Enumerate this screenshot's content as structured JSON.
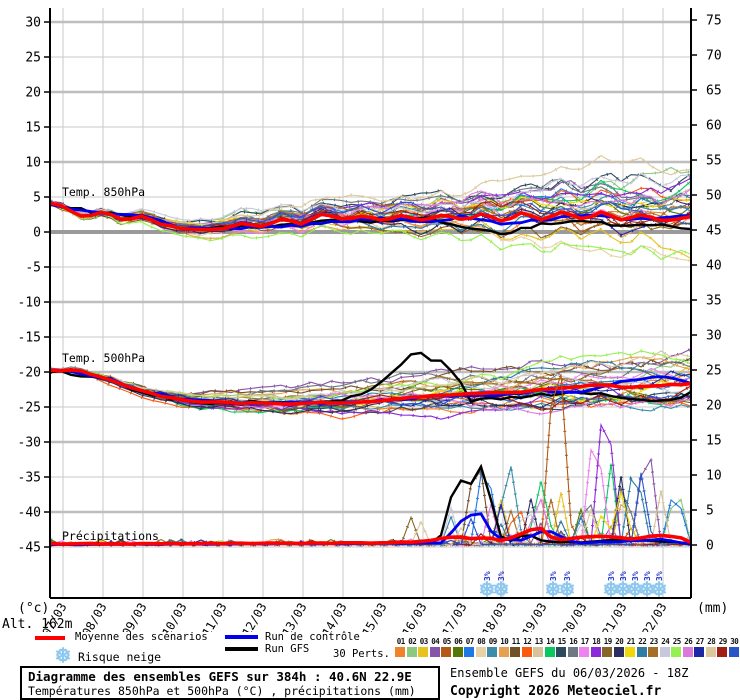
{
  "legend": {
    "mean_label": "Moyenne des scénarios",
    "control_label": "Run de contrôle",
    "gfs_label": "Run GFS",
    "perts_label": "30 Perts.",
    "snow_label": "Risque neige",
    "alt_label": "Alt. 162m",
    "left_unit": "(°c)",
    "right_unit": "(mm)"
  },
  "title_box": {
    "line1": "Diagramme des ensembles GEFS sur 384h : 40.6N 22.9E",
    "line2": "Températures 850hPa et 500hPa (°C) , précipitations (mm)"
  },
  "footer_right": {
    "line1": "Ensemble GEFS du 06/03/2026 - 18Z",
    "line2": "Copyright 2026 Meteociel.fr"
  },
  "pert_numbers": [
    "01",
    "02",
    "03",
    "04",
    "05",
    "06",
    "07",
    "08",
    "09",
    "10",
    "11",
    "12",
    "13",
    "14",
    "15",
    "16",
    "17",
    "18",
    "19",
    "20",
    "21",
    "22",
    "23",
    "24",
    "25",
    "26",
    "27",
    "28",
    "29",
    "30"
  ],
  "colors": {
    "mean": "#FF0000",
    "control": "#0000EE",
    "gfs": "#000000",
    "snowflake": "#8EC8EE",
    "snow_text": "#2233CC",
    "grid_thin": "#C8C8C8",
    "grid_thick": "#BEBEBE",
    "zero_line": "#9A9A9A",
    "axis": "#000000",
    "members": [
      "#F08228",
      "#8CC87D",
      "#E6C31E",
      "#8755A8",
      "#B45A14",
      "#557805",
      "#1E78E6",
      "#E6D2A5",
      "#3C8CAA",
      "#E6A050",
      "#735028",
      "#FA5A0F",
      "#D7C39B",
      "#0AC85F",
      "#2D4B5F",
      "#6E7882",
      "#EE82EE",
      "#8C28DC",
      "#876428",
      "#2D2D5F",
      "#F0D705",
      "#2D7DA5",
      "#A56E28",
      "#C8C8DC",
      "#96F050",
      "#DC78DC",
      "#1E28A5",
      "#DCC89B",
      "#A01E14",
      "#2855C8"
    ]
  },
  "chart_data": {
    "type": "line",
    "title": "Diagramme des ensembles GEFS sur 384h : 40.6N 22.9E",
    "subtitle": "Températures 850hPa et 500hPa (°C) , précipitations (mm)",
    "x_labels": [
      "07/03",
      "08/03",
      "09/03",
      "10/03",
      "11/03",
      "12/03",
      "13/03",
      "14/03",
      "15/03",
      "16/03",
      "17/03",
      "18/03",
      "19/03",
      "20/03",
      "21/03",
      "22/03"
    ],
    "x_range_days": [
      6.7,
      22.7
    ],
    "left_axis": {
      "unit": "(°c)",
      "tick_max": 30,
      "tick_min": -45,
      "tick_step": 5
    },
    "right_axis": {
      "unit": "(mm)",
      "tick_max": 75,
      "tick_min": 0,
      "tick_step": 5
    },
    "grid": "on",
    "sections": [
      {
        "key": "temp850",
        "label": "Temp. 850hPa"
      },
      {
        "key": "temp500",
        "label": "Temp. 500hPa"
      },
      {
        "key": "precip",
        "label": "Précipitations"
      }
    ],
    "temp850": {
      "mean": [
        [
          6.7,
          4.1
        ],
        [
          7,
          3.6
        ],
        [
          7.5,
          2.1
        ],
        [
          8,
          2.9
        ],
        [
          8.5,
          1.7
        ],
        [
          9,
          2.3
        ],
        [
          9.5,
          1.0
        ],
        [
          10,
          0.5
        ],
        [
          10.5,
          0.3
        ],
        [
          11,
          0.5
        ],
        [
          11.5,
          1.3
        ],
        [
          12,
          0.7
        ],
        [
          12.5,
          1.9
        ],
        [
          13,
          1.1
        ],
        [
          13.5,
          2.7
        ],
        [
          14,
          1.7
        ],
        [
          14.5,
          2.3
        ],
        [
          15,
          1.6
        ],
        [
          15.5,
          2.4
        ],
        [
          16,
          1.6
        ],
        [
          16.5,
          2.5
        ],
        [
          17,
          1.7
        ],
        [
          17.5,
          2.6
        ],
        [
          18,
          1.5
        ],
        [
          18.5,
          2.8
        ],
        [
          19,
          1.7
        ],
        [
          19.5,
          2.9
        ],
        [
          20,
          1.8
        ],
        [
          20.5,
          2.9
        ],
        [
          21,
          1.6
        ],
        [
          21.5,
          2.6
        ],
        [
          22,
          1.5
        ],
        [
          22.7,
          2.2
        ]
      ],
      "control": [
        [
          6.7,
          3.9
        ],
        [
          7,
          3.6
        ],
        [
          8,
          2.8
        ],
        [
          9,
          2.4
        ],
        [
          10,
          0.5
        ],
        [
          11,
          0.4
        ],
        [
          12,
          0.8
        ],
        [
          13,
          1.0
        ],
        [
          14,
          1.5
        ],
        [
          15,
          2.0
        ],
        [
          16,
          1.4
        ],
        [
          17,
          2.2
        ],
        [
          18,
          1.1
        ],
        [
          19,
          1.7
        ],
        [
          20,
          2.4
        ],
        [
          21,
          1.8
        ],
        [
          22,
          2.1
        ],
        [
          22.7,
          2.4
        ]
      ],
      "gfs": [
        [
          6.7,
          3.9
        ],
        [
          7,
          3.6
        ],
        [
          8,
          2.7
        ],
        [
          9,
          2.2
        ],
        [
          10,
          0.4
        ],
        [
          11,
          0.6
        ],
        [
          12,
          0.9
        ],
        [
          13,
          1.2
        ],
        [
          14,
          1.9
        ],
        [
          15,
          1.4
        ],
        [
          16,
          2.0
        ],
        [
          17,
          0.9
        ],
        [
          18,
          -0.3
        ],
        [
          19,
          1.2
        ],
        [
          20,
          1.8
        ],
        [
          21,
          0.8
        ],
        [
          22,
          1.1
        ],
        [
          22.7,
          0.5
        ]
      ],
      "spread_start": 0.55,
      "spread_end": 4.3,
      "min": -8.3,
      "max": 12.6,
      "seed": 11
    },
    "temp500": {
      "mean": [
        [
          6.7,
          -19.8
        ],
        [
          7,
          -19.9
        ],
        [
          7.3,
          -19.5
        ],
        [
          7.5,
          -20.0
        ],
        [
          8,
          -20.8
        ],
        [
          8.5,
          -21.8
        ],
        [
          9,
          -22.8
        ],
        [
          9.5,
          -23.5
        ],
        [
          10,
          -24.0
        ],
        [
          10.5,
          -24.3
        ],
        [
          11,
          -24.2
        ],
        [
          11.5,
          -24.5
        ],
        [
          12,
          -24.4
        ],
        [
          12.5,
          -24.6
        ],
        [
          13,
          -24.5
        ],
        [
          13.5,
          -24.4
        ],
        [
          14,
          -24.5
        ],
        [
          14.5,
          -24.3
        ],
        [
          15,
          -24.0
        ],
        [
          15.5,
          -23.8
        ],
        [
          16,
          -23.5
        ],
        [
          16.5,
          -23.3
        ],
        [
          17,
          -23.2
        ],
        [
          17.5,
          -23.0
        ],
        [
          18,
          -23.0
        ],
        [
          18.5,
          -22.8
        ],
        [
          19,
          -22.5
        ],
        [
          19.5,
          -22.3
        ],
        [
          20,
          -22.0
        ],
        [
          20.5,
          -21.8
        ],
        [
          21,
          -22.2
        ],
        [
          21.5,
          -22.0
        ],
        [
          22,
          -21.9
        ],
        [
          22.7,
          -21.7
        ]
      ],
      "control": [
        [
          6.7,
          -19.8
        ],
        [
          7,
          -19.8
        ],
        [
          8,
          -20.7
        ],
        [
          9,
          -22.7
        ],
        [
          10,
          -24.0
        ],
        [
          11,
          -24.4
        ],
        [
          12,
          -24.6
        ],
        [
          13,
          -24.3
        ],
        [
          14,
          -24.5
        ],
        [
          15,
          -24.0
        ],
        [
          16,
          -23.6
        ],
        [
          17,
          -23.2
        ],
        [
          18,
          -23.4
        ],
        [
          19,
          -22.6
        ],
        [
          20,
          -23.0
        ],
        [
          21,
          -21.4
        ],
        [
          22,
          -20.6
        ],
        [
          22.7,
          -21.6
        ]
      ],
      "gfs": [
        [
          6.7,
          -19.9
        ],
        [
          7,
          -20.0
        ],
        [
          8,
          -20.9
        ],
        [
          9,
          -22.9
        ],
        [
          10,
          -24.1
        ],
        [
          11,
          -24.5
        ],
        [
          12,
          -24.3
        ],
        [
          13,
          -24.6
        ],
        [
          14,
          -24.2
        ],
        [
          15,
          -21.5
        ],
        [
          15.85,
          -16.8
        ],
        [
          16.3,
          -18.5
        ],
        [
          16.6,
          -18.7
        ],
        [
          17.2,
          -24.0
        ],
        [
          18,
          -23.8
        ],
        [
          19,
          -23.3
        ],
        [
          20,
          -23.0
        ],
        [
          21,
          -23.6
        ],
        [
          22,
          -24.2
        ],
        [
          22.7,
          -23.0
        ]
      ],
      "spread_start": 0.35,
      "spread_end": 3.9,
      "min": -30.5,
      "max": -12.4,
      "seed": 22
    },
    "precip": {
      "mean": [
        [
          6.7,
          0.15
        ],
        [
          10,
          0.2
        ],
        [
          13,
          0.25
        ],
        [
          14,
          0.3
        ],
        [
          15,
          0.3
        ],
        [
          16,
          0.5
        ],
        [
          16.8,
          1.2
        ],
        [
          17.3,
          0.8
        ],
        [
          17.6,
          1.1
        ],
        [
          18,
          0.6
        ],
        [
          18.9,
          2.6
        ],
        [
          19.3,
          0.7
        ],
        [
          19.9,
          1.1
        ],
        [
          20.6,
          1.3
        ],
        [
          21.2,
          0.8
        ],
        [
          21.9,
          1.4
        ],
        [
          22.4,
          1.1
        ],
        [
          22.7,
          0.4
        ]
      ],
      "control": [
        [
          6.7,
          0.05
        ],
        [
          14,
          0.2
        ],
        [
          16.5,
          0.3
        ],
        [
          16.9,
          3.2
        ],
        [
          17.4,
          5.0
        ],
        [
          17.8,
          1.0
        ],
        [
          18.4,
          0.6
        ],
        [
          19.1,
          2.2
        ],
        [
          19.8,
          0.3
        ],
        [
          21,
          0.5
        ],
        [
          22,
          0.8
        ],
        [
          22.7,
          0.1
        ]
      ],
      "gfs": [
        [
          6.7,
          0.05
        ],
        [
          16.4,
          0.3
        ],
        [
          16.8,
          9.0
        ],
        [
          17,
          9.3
        ],
        [
          17.3,
          8.5
        ],
        [
          17.55,
          13.0
        ],
        [
          17.8,
          2.0
        ],
        [
          18.1,
          0.4
        ],
        [
          18.6,
          1.6
        ],
        [
          19,
          0.5
        ],
        [
          20,
          0.4
        ],
        [
          21,
          0.8
        ],
        [
          22,
          0.5
        ],
        [
          22.7,
          0.2
        ]
      ],
      "spikes": [
        {
          "member": 11,
          "day": 17.35,
          "mm": 15
        },
        {
          "member": 7,
          "day": 17.55,
          "mm": 14
        },
        {
          "member": 9,
          "day": 18.15,
          "mm": 13
        },
        {
          "member": 24,
          "day": 18.6,
          "mm": 6
        },
        {
          "member": 26,
          "day": 18.9,
          "mm": 7.5
        },
        {
          "member": 14,
          "day": 18.95,
          "mm": 9
        },
        {
          "member": 5,
          "day": 19.35,
          "mm": 34
        },
        {
          "member": 16,
          "day": 20.15,
          "mm": 6.5
        },
        {
          "member": 17,
          "day": 20.3,
          "mm": 19
        },
        {
          "member": 18,
          "day": 20.55,
          "mm": 24
        },
        {
          "member": 21,
          "day": 20.95,
          "mm": 7.5
        },
        {
          "member": 10,
          "day": 21.05,
          "mm": 8
        },
        {
          "member": 22,
          "day": 21.3,
          "mm": 13
        },
        {
          "member": 4,
          "day": 21.6,
          "mm": 17
        },
        {
          "member": 7,
          "day": 22.3,
          "mm": 9
        },
        {
          "member": 2,
          "day": 22.35,
          "mm": 9
        }
      ],
      "seed": 33
    },
    "snow_markers": {
      "label": "3%",
      "days": [
        17.6,
        17.95,
        19.25,
        19.6,
        20.7,
        21.0,
        21.3,
        21.6,
        21.9
      ]
    }
  }
}
